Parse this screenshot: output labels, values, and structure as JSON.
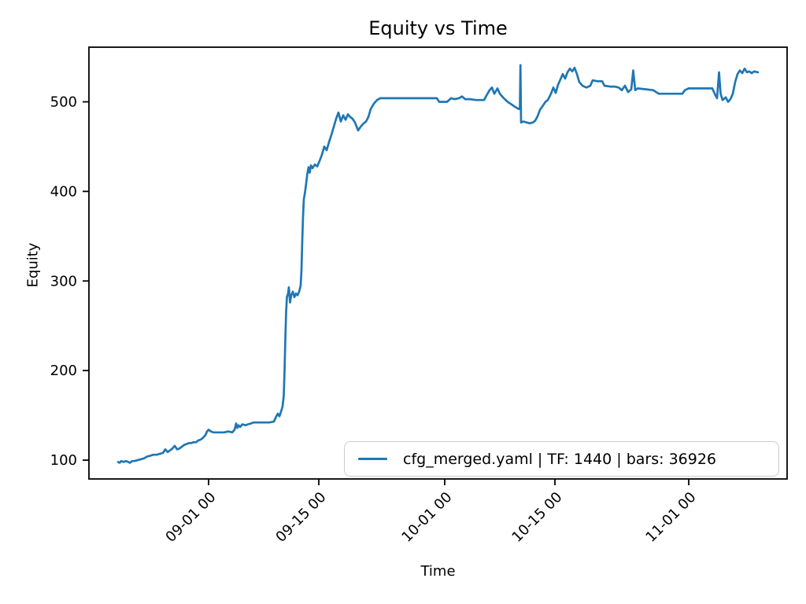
{
  "chart_data": {
    "type": "line",
    "title": "Equity vs Time",
    "xlabel": "Time",
    "ylabel": "Equity",
    "x_unit": "days relative to 09-01 00:00",
    "xlim": [
      -15.2,
      73.5
    ],
    "ylim": [
      79,
      561
    ],
    "grid": false,
    "x_ticks": [
      {
        "pos": 0,
        "label": "09-01 00"
      },
      {
        "pos": 14,
        "label": "09-15 00"
      },
      {
        "pos": 30,
        "label": "10-01 00"
      },
      {
        "pos": 44,
        "label": "10-15 00"
      },
      {
        "pos": 61,
        "label": "11-01 00"
      }
    ],
    "y_ticks": [
      100,
      200,
      300,
      400,
      500
    ],
    "legend": {
      "position": "lower right",
      "entries": [
        {
          "label": "cfg_merged.yaml | TF: 1440 | bars: 36926",
          "color": "#1f77b4"
        }
      ]
    },
    "series": [
      {
        "name": "cfg_merged.yaml | TF: 1440 | bars: 36926",
        "color": "#1f77b4",
        "points": [
          [
            -11.5,
            98
          ],
          [
            -11.3,
            97
          ],
          [
            -11.1,
            99
          ],
          [
            -10.8,
            98
          ],
          [
            -10.5,
            99
          ],
          [
            -10.2,
            98
          ],
          [
            -10.0,
            97
          ],
          [
            -9.7,
            99
          ],
          [
            -9.4,
            99
          ],
          [
            -9.0,
            100
          ],
          [
            -8.6,
            101
          ],
          [
            -8.2,
            102
          ],
          [
            -7.8,
            104
          ],
          [
            -7.4,
            105
          ],
          [
            -7.0,
            106
          ],
          [
            -6.6,
            106
          ],
          [
            -6.2,
            107
          ],
          [
            -5.8,
            108
          ],
          [
            -5.5,
            112
          ],
          [
            -5.2,
            109
          ],
          [
            -4.9,
            111
          ],
          [
            -4.6,
            113
          ],
          [
            -4.3,
            116
          ],
          [
            -4.0,
            112
          ],
          [
            -3.7,
            113
          ],
          [
            -3.4,
            115
          ],
          [
            -3.1,
            117
          ],
          [
            -2.8,
            118
          ],
          [
            -2.5,
            119
          ],
          [
            -2.2,
            119
          ],
          [
            -1.9,
            120
          ],
          [
            -1.6,
            120
          ],
          [
            -1.3,
            122
          ],
          [
            -1.0,
            123
          ],
          [
            -0.7,
            125
          ],
          [
            -0.4,
            128
          ],
          [
            -0.2,
            132
          ],
          [
            0.0,
            134
          ],
          [
            0.3,
            132
          ],
          [
            0.6,
            131
          ],
          [
            1.0,
            131
          ],
          [
            1.5,
            131
          ],
          [
            2.0,
            131
          ],
          [
            2.5,
            132
          ],
          [
            3.0,
            131
          ],
          [
            3.3,
            134
          ],
          [
            3.5,
            141
          ],
          [
            3.65,
            136
          ],
          [
            3.8,
            139
          ],
          [
            4.0,
            137
          ],
          [
            4.3,
            140
          ],
          [
            4.7,
            139
          ],
          [
            5.0,
            140
          ],
          [
            5.4,
            141
          ],
          [
            5.7,
            142
          ],
          [
            6.2,
            142
          ],
          [
            6.7,
            142
          ],
          [
            7.2,
            142
          ],
          [
            7.7,
            142
          ],
          [
            8.3,
            143
          ],
          [
            8.5,
            147
          ],
          [
            8.8,
            152
          ],
          [
            9.0,
            149
          ],
          [
            9.2,
            154
          ],
          [
            9.4,
            160
          ],
          [
            9.55,
            172
          ],
          [
            9.65,
            200
          ],
          [
            9.75,
            235
          ],
          [
            9.85,
            265
          ],
          [
            9.95,
            282
          ],
          [
            10.1,
            286
          ],
          [
            10.2,
            293
          ],
          [
            10.35,
            276
          ],
          [
            10.5,
            284
          ],
          [
            10.7,
            288
          ],
          [
            10.9,
            282
          ],
          [
            11.1,
            286
          ],
          [
            11.3,
            284
          ],
          [
            11.5,
            288
          ],
          [
            11.7,
            295
          ],
          [
            11.8,
            312
          ],
          [
            11.9,
            345
          ],
          [
            12.0,
            372
          ],
          [
            12.1,
            391
          ],
          [
            12.25,
            399
          ],
          [
            12.4,
            409
          ],
          [
            12.55,
            420
          ],
          [
            12.7,
            427
          ],
          [
            12.85,
            421
          ],
          [
            13.0,
            429
          ],
          [
            13.2,
            426
          ],
          [
            13.5,
            430
          ],
          [
            13.8,
            428
          ],
          [
            14.1,
            434
          ],
          [
            14.4,
            441
          ],
          [
            14.7,
            450
          ],
          [
            15.0,
            446
          ],
          [
            15.3,
            455
          ],
          [
            15.6,
            463
          ],
          [
            15.9,
            472
          ],
          [
            16.2,
            481
          ],
          [
            16.5,
            488
          ],
          [
            16.8,
            478
          ],
          [
            17.1,
            485
          ],
          [
            17.4,
            480
          ],
          [
            17.7,
            486
          ],
          [
            18.0,
            483
          ],
          [
            18.3,
            481
          ],
          [
            18.6,
            477
          ],
          [
            19.0,
            468
          ],
          [
            19.3,
            472
          ],
          [
            19.7,
            476
          ],
          [
            20.0,
            478
          ],
          [
            20.3,
            483
          ],
          [
            20.6,
            492
          ],
          [
            21.0,
            498
          ],
          [
            21.4,
            502
          ],
          [
            21.8,
            504
          ],
          [
            23.0,
            504
          ],
          [
            25.0,
            504
          ],
          [
            27.0,
            504
          ],
          [
            29.0,
            504
          ],
          [
            29.3,
            500
          ],
          [
            29.8,
            500
          ],
          [
            30.3,
            500
          ],
          [
            30.8,
            504
          ],
          [
            31.3,
            503
          ],
          [
            31.8,
            504
          ],
          [
            32.2,
            506
          ],
          [
            32.6,
            503
          ],
          [
            33.2,
            503
          ],
          [
            34.0,
            502
          ],
          [
            34.6,
            502
          ],
          [
            35.0,
            502
          ],
          [
            35.3,
            507
          ],
          [
            35.7,
            513
          ],
          [
            36.0,
            516
          ],
          [
            36.3,
            509
          ],
          [
            36.7,
            515
          ],
          [
            37.0,
            509
          ],
          [
            37.5,
            504
          ],
          [
            38.0,
            500
          ],
          [
            38.5,
            497
          ],
          [
            39.0,
            494
          ],
          [
            39.4,
            492
          ],
          [
            39.55,
            492
          ],
          [
            39.62,
            541
          ],
          [
            39.7,
            477
          ],
          [
            40.0,
            478
          ],
          [
            40.4,
            477
          ],
          [
            40.8,
            476
          ],
          [
            41.2,
            477
          ],
          [
            41.5,
            479
          ],
          [
            41.8,
            484
          ],
          [
            42.1,
            491
          ],
          [
            42.5,
            496
          ],
          [
            42.8,
            500
          ],
          [
            43.1,
            502
          ],
          [
            43.5,
            509
          ],
          [
            43.8,
            516
          ],
          [
            44.1,
            510
          ],
          [
            44.4,
            519
          ],
          [
            44.7,
            525
          ],
          [
            45.0,
            531
          ],
          [
            45.3,
            526
          ],
          [
            45.6,
            533
          ],
          [
            45.9,
            537
          ],
          [
            46.2,
            534
          ],
          [
            46.5,
            538
          ],
          [
            46.8,
            531
          ],
          [
            47.1,
            522
          ],
          [
            47.5,
            518
          ],
          [
            48.0,
            516
          ],
          [
            48.5,
            518
          ],
          [
            48.8,
            524
          ],
          [
            49.4,
            523
          ],
          [
            50.0,
            523
          ],
          [
            50.3,
            518
          ],
          [
            51.0,
            517
          ],
          [
            51.6,
            517
          ],
          [
            52.1,
            516
          ],
          [
            52.5,
            513
          ],
          [
            52.9,
            518
          ],
          [
            53.3,
            511
          ],
          [
            53.7,
            514
          ],
          [
            53.95,
            535
          ],
          [
            54.2,
            513
          ],
          [
            54.5,
            515
          ],
          [
            55.5,
            514
          ],
          [
            56.5,
            513
          ],
          [
            57.2,
            509
          ],
          [
            58.2,
            509
          ],
          [
            59.2,
            509
          ],
          [
            60.2,
            509
          ],
          [
            60.5,
            513
          ],
          [
            61.0,
            515
          ],
          [
            62.0,
            515
          ],
          [
            63.0,
            515
          ],
          [
            64.0,
            515
          ],
          [
            64.3,
            509
          ],
          [
            64.6,
            504
          ],
          [
            64.85,
            533
          ],
          [
            65.05,
            509
          ],
          [
            65.3,
            502
          ],
          [
            65.7,
            505
          ],
          [
            66.0,
            500
          ],
          [
            66.3,
            503
          ],
          [
            66.6,
            509
          ],
          [
            66.9,
            522
          ],
          [
            67.2,
            531
          ],
          [
            67.5,
            535
          ],
          [
            67.8,
            532
          ],
          [
            68.1,
            537
          ],
          [
            68.4,
            533
          ],
          [
            68.7,
            534
          ],
          [
            69.0,
            532
          ],
          [
            69.3,
            534
          ],
          [
            69.8,
            533
          ]
        ]
      }
    ]
  },
  "figure": {
    "background": "#ffffff",
    "spine_color": "#000000",
    "tick_color": "#000000"
  }
}
